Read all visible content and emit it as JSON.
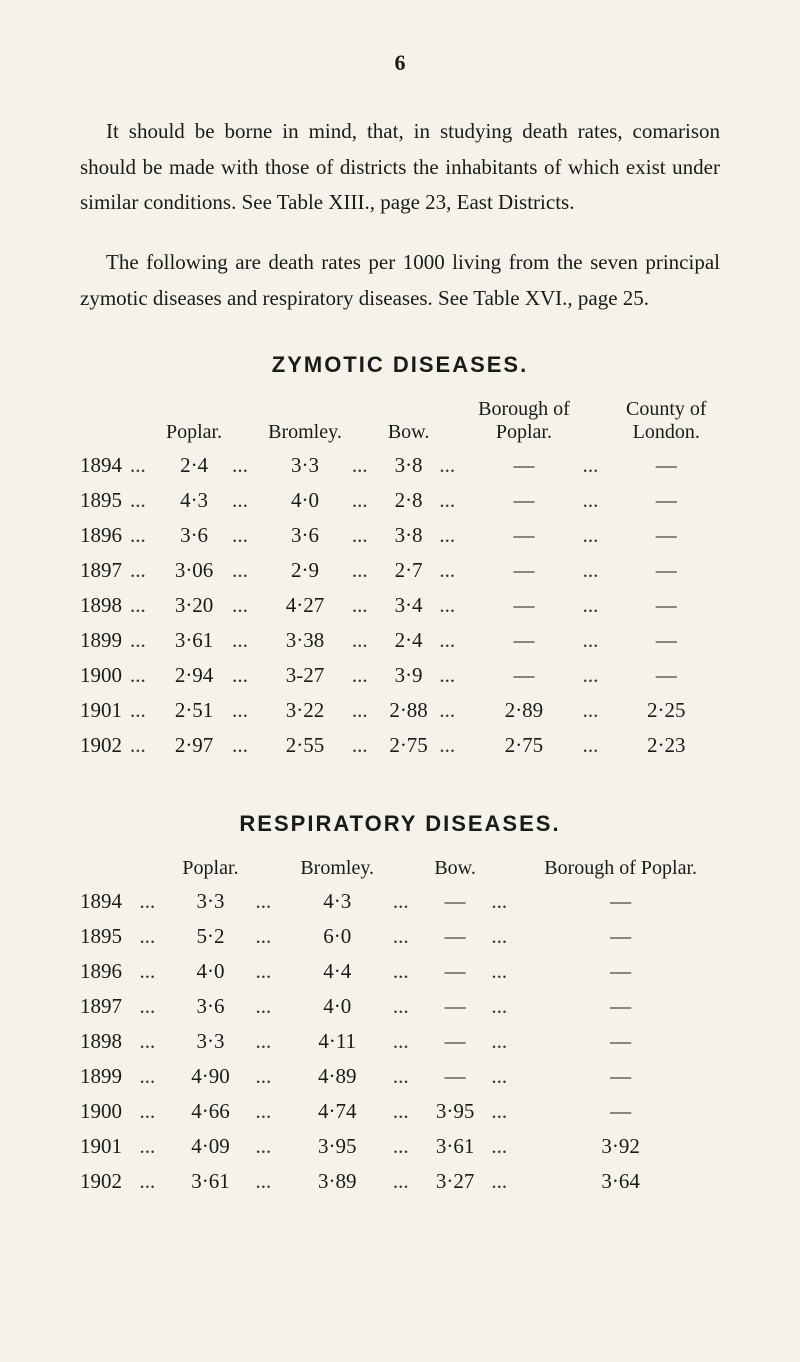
{
  "page_number": "6",
  "paragraphs": {
    "p1": "It should be borne in mind, that, in studying death rates, comarison should be made with those of districts the inhabitants of which exist under similar conditions. See Table XIII., page 23, East Districts.",
    "p2": "The following are death rates per 1000 living from the seven principal zymotic diseases and respiratory diseases. See Table XVI., page 25."
  },
  "colors": {
    "background": "#f5f2ea",
    "text": "#1a1a1a"
  },
  "zymotic": {
    "title": "ZYMOTIC DISEASES.",
    "headers": [
      "Poplar.",
      "Bromley.",
      "Bow.",
      "Borough of Poplar.",
      "County of London."
    ],
    "rows": [
      {
        "year": "1894",
        "poplar": "2·4",
        "bromley": "3·3",
        "bow": "3·8",
        "borough": "—",
        "county": "—"
      },
      {
        "year": "1895",
        "poplar": "4·3",
        "bromley": "4·0",
        "bow": "2·8",
        "borough": "—",
        "county": "—"
      },
      {
        "year": "1896",
        "poplar": "3·6",
        "bromley": "3·6",
        "bow": "3·8",
        "borough": "—",
        "county": "—"
      },
      {
        "year": "1897",
        "poplar": "3·06",
        "bromley": "2·9",
        "bow": "2·7",
        "borough": "—",
        "county": "—"
      },
      {
        "year": "1898",
        "poplar": "3·20",
        "bromley": "4·27",
        "bow": "3·4",
        "borough": "—",
        "county": "—"
      },
      {
        "year": "1899",
        "poplar": "3·61",
        "bromley": "3·38",
        "bow": "2·4",
        "borough": "—",
        "county": "—"
      },
      {
        "year": "1900",
        "poplar": "2·94",
        "bromley": "3-27",
        "bow": "3·9",
        "borough": "—",
        "county": "—"
      },
      {
        "year": "1901",
        "poplar": "2·51",
        "bromley": "3·22",
        "bow": "2·88",
        "borough": "2·89",
        "county": "2·25"
      },
      {
        "year": "1902",
        "poplar": "2·97",
        "bromley": "2·55",
        "bow": "2·75",
        "borough": "2·75",
        "county": "2·23"
      }
    ]
  },
  "respiratory": {
    "title": "RESPIRATORY DISEASES.",
    "headers": [
      "Poplar.",
      "Bromley.",
      "Bow.",
      "Borough of Poplar."
    ],
    "rows": [
      {
        "year": "1894",
        "poplar": "3·3",
        "bromley": "4·3",
        "bow": "—",
        "borough": "—"
      },
      {
        "year": "1895",
        "poplar": "5·2",
        "bromley": "6·0",
        "bow": "—",
        "borough": "—"
      },
      {
        "year": "1896",
        "poplar": "4·0",
        "bromley": "4·4",
        "bow": "—",
        "borough": "—"
      },
      {
        "year": "1897",
        "poplar": "3·6",
        "bromley": "4·0",
        "bow": "—",
        "borough": "—"
      },
      {
        "year": "1898",
        "poplar": "3·3",
        "bromley": "4·11",
        "bow": "—",
        "borough": "—"
      },
      {
        "year": "1899",
        "poplar": "4·90",
        "bromley": "4·89",
        "bow": "—",
        "borough": "—"
      },
      {
        "year": "1900",
        "poplar": "4·66",
        "bromley": "4·74",
        "bow": "3·95",
        "borough": "—"
      },
      {
        "year": "1901",
        "poplar": "4·09",
        "bromley": "3·95",
        "bow": "3·61",
        "borough": "3·92"
      },
      {
        "year": "1902",
        "poplar": "3·61",
        "bromley": "3·89",
        "bow": "3·27",
        "borough": "3·64"
      }
    ]
  }
}
